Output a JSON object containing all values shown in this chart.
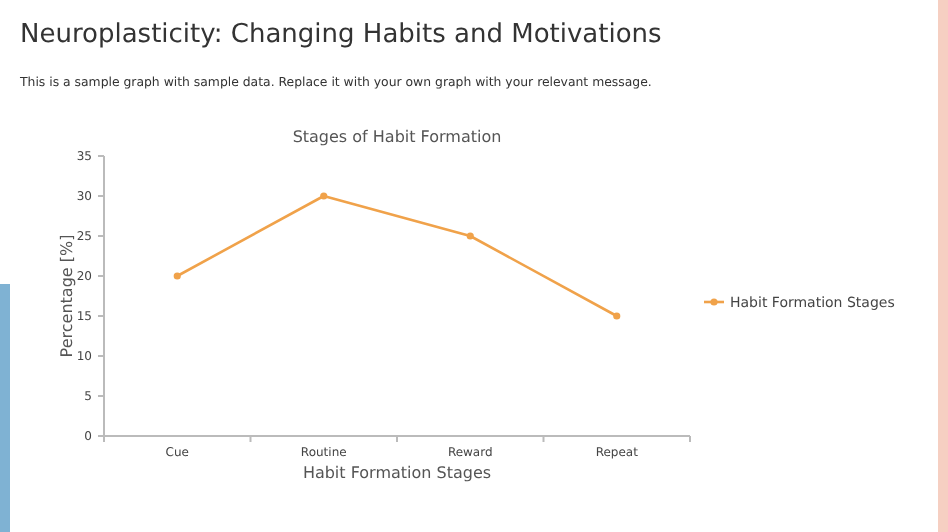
{
  "chart_data": {
    "type": "line",
    "title": "Neuroplasticity: Changing Habits and Motivations",
    "subtitle": "This is a sample graph with sample data. Replace it with your own graph with your relevant message.",
    "annotations": [
      "Stages of Habit Formation"
    ],
    "xlabel": "Habit Formation Stages",
    "ylabel": "Percentage [%]",
    "categories": [
      "Cue",
      "Routine",
      "Reward",
      "Repeat"
    ],
    "series": [
      {
        "name": "Habit Formation Stages",
        "color": "#f0a24a",
        "values": [
          20,
          30,
          25,
          15
        ]
      }
    ],
    "ylim": [
      0,
      35
    ],
    "yticks": [
      0,
      5,
      10,
      15,
      20,
      25,
      30,
      35
    ],
    "grid": false,
    "legend": "right",
    "marker": "circle",
    "line_style": "solid"
  }
}
